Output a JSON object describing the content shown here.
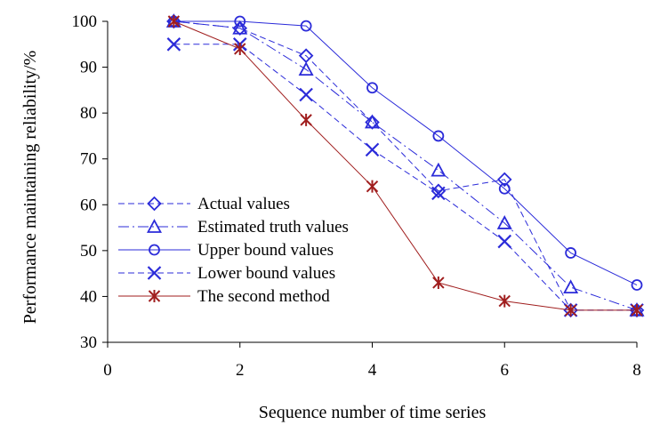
{
  "chart_data": {
    "type": "line",
    "title": "",
    "xlabel": "Sequence number of time series",
    "ylabel": "Performance maintaining reliability/%",
    "xlim": [
      0,
      8
    ],
    "ylim": [
      30,
      100
    ],
    "xticks": [
      0,
      2,
      4,
      6,
      8
    ],
    "yticks": [
      30,
      40,
      50,
      60,
      70,
      80,
      90,
      100
    ],
    "grid": false,
    "legend_position": "bottom-left",
    "series": [
      {
        "name": "Actual values",
        "marker": "diamond",
        "line_style": "dashed",
        "color": "#2b2bd9",
        "x": [
          1,
          2,
          3,
          4,
          5,
          6,
          7,
          8
        ],
        "y": [
          100,
          98.5,
          92.5,
          78,
          63,
          65.5,
          37,
          37
        ]
      },
      {
        "name": "Estimated truth values",
        "marker": "triangle",
        "line_style": "dashdot",
        "color": "#2b2bd9",
        "x": [
          1,
          2,
          3,
          4,
          5,
          6,
          7,
          8
        ],
        "y": [
          100,
          98.5,
          89.5,
          78,
          67.5,
          56,
          42,
          37
        ]
      },
      {
        "name": "Upper bound values",
        "marker": "circle",
        "line_style": "solid",
        "color": "#2b2bd9",
        "x": [
          1,
          2,
          3,
          4,
          5,
          6,
          7,
          8
        ],
        "y": [
          100,
          100,
          99,
          85.5,
          75,
          63.5,
          49.5,
          42.5
        ]
      },
      {
        "name": "Lower bound values",
        "marker": "x",
        "line_style": "dashed",
        "color": "#2b2bd9",
        "x": [
          1,
          2,
          3,
          4,
          5,
          6,
          7,
          8
        ],
        "y": [
          95,
          95,
          84,
          72,
          62.5,
          52,
          37,
          37
        ]
      },
      {
        "name": "The second method",
        "marker": "asterisk",
        "line_style": "solid",
        "color": "#a01e1e",
        "x": [
          1,
          2,
          3,
          4,
          5,
          6,
          7,
          8
        ],
        "y": [
          100,
          94,
          78.5,
          64,
          43,
          39,
          37,
          37
        ]
      }
    ]
  }
}
